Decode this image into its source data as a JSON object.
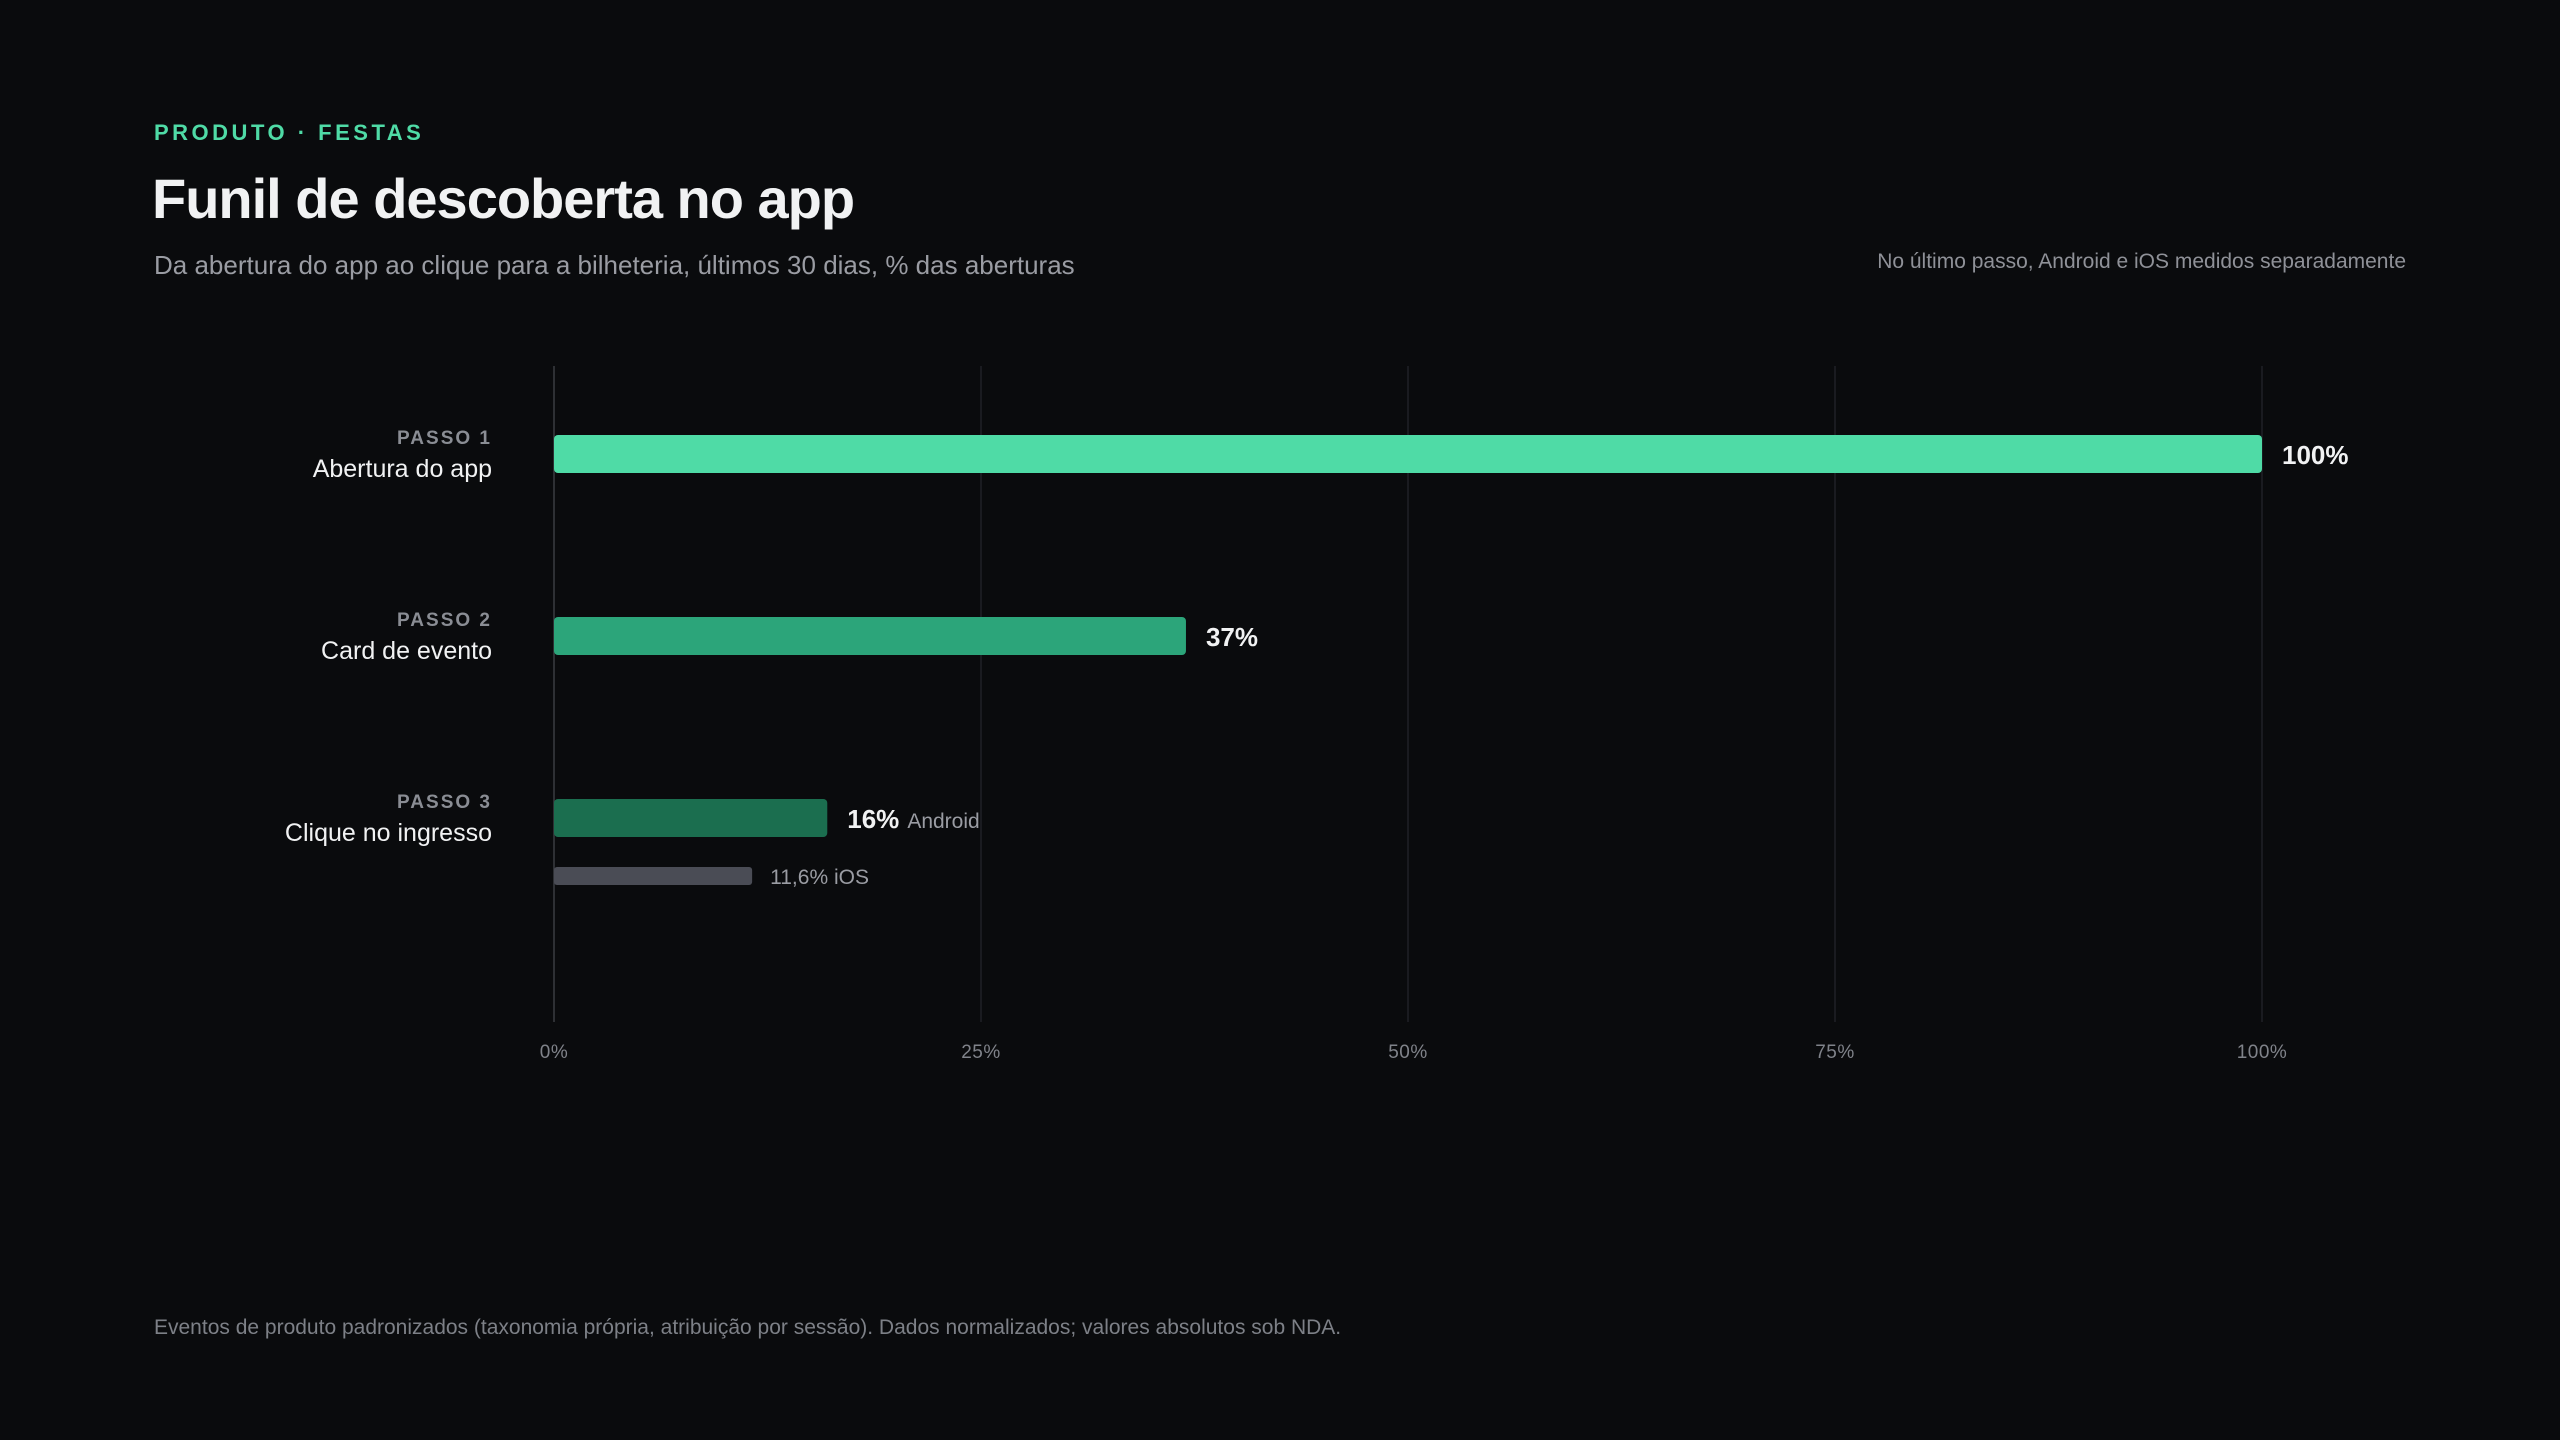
{
  "header": {
    "eyebrow": "PRODUTO · FESTAS",
    "title": "Funil de descoberta no app",
    "subtitle": "Da abertura do app ao clique para a bilheteria, últimos 30 dias, % das aberturas",
    "side_note": "No último passo, Android e iOS medidos separadamente"
  },
  "footnote": "Eventos de produto padronizados (taxonomia própria, atribuição por sessão). Dados normalizados; valores absolutos sob NDA.",
  "colors": {
    "step1": "#4fdba6",
    "step2": "#2ca57a",
    "step3_android": "#1b6e4f",
    "step3_ios": "#4a4c55",
    "grid": "#1f2126",
    "axis": "#3a3c42",
    "tick_text": "#80838a",
    "step_label": "#8a8d94",
    "category_label": "#f1f2f3",
    "value_label": "#f1f2f3",
    "secondary_label": "#9a9ca3"
  },
  "chart_data": {
    "type": "bar",
    "orientation": "horizontal",
    "categories": [
      {
        "step": "PASSO 1",
        "name": "Abertura do app"
      },
      {
        "step": "PASSO 2",
        "name": "Card de evento"
      },
      {
        "step": "PASSO 3",
        "name": "Clique no ingresso"
      }
    ],
    "bars": [
      {
        "category_index": 0,
        "value": 100,
        "label": "100%",
        "suffix": "",
        "color_key": "step1"
      },
      {
        "category_index": 1,
        "value": 37,
        "label": "37%",
        "suffix": "",
        "color_key": "step2"
      },
      {
        "category_index": 2,
        "value": 16,
        "label": "16%",
        "suffix": "Android",
        "color_key": "step3_android"
      },
      {
        "category_index": 2,
        "value": 11.6,
        "label": "11,6% iOS",
        "suffix": "",
        "color_key": "step3_ios",
        "secondary": true
      }
    ],
    "xlim": [
      0,
      100
    ],
    "xticks": [
      0,
      25,
      50,
      75,
      100
    ],
    "xtick_labels": [
      "0%",
      "25%",
      "50%",
      "75%",
      "100%"
    ],
    "grid": true
  }
}
